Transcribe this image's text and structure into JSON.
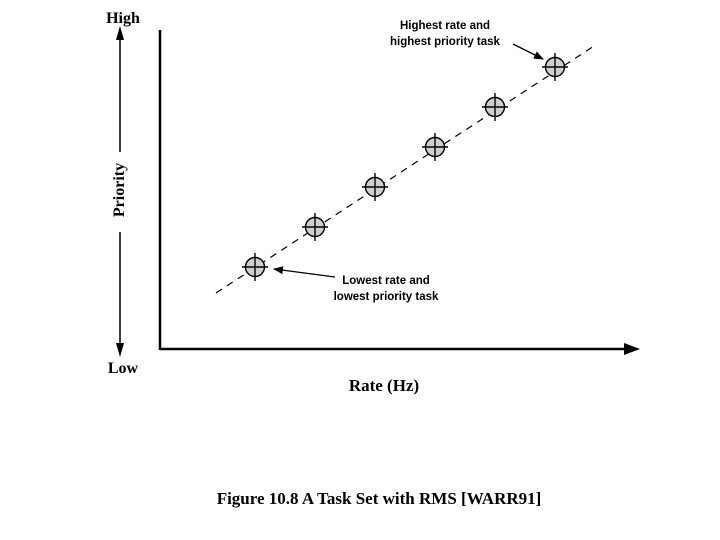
{
  "diagram": {
    "y_axis": {
      "top_label": "High",
      "bottom_label": "Low",
      "title": "Priority"
    },
    "x_axis": {
      "title": "Rate (Hz)"
    },
    "annotations": {
      "highest": [
        "Highest rate and",
        "highest priority task"
      ],
      "lowest": [
        "Lowest rate and",
        "lowest priority task"
      ]
    },
    "task_count": 6,
    "caption": "Figure 10.8  A Task Set with RMS [WARR91]",
    "colors": {
      "ink": "#000000",
      "marker_fill": "#cfcfcf"
    }
  }
}
